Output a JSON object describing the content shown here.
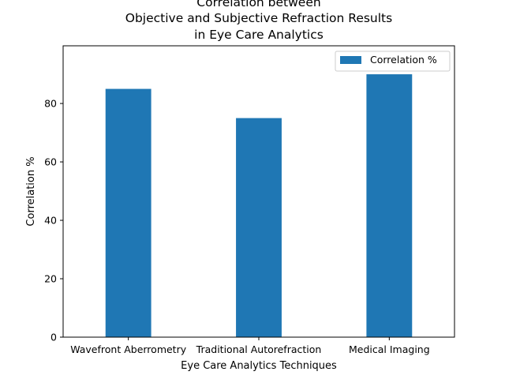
{
  "chart_data": {
    "type": "bar",
    "title_lines": [
      "Correlation between",
      "Objective and Subjective Refraction Results",
      "in Eye Care Analytics"
    ],
    "xlabel": "Eye Care Analytics Techniques",
    "ylabel": "Correlation %",
    "categories": [
      "Wavefront Aberrometry",
      "Traditional Autorefraction",
      "Medical Imaging"
    ],
    "series": [
      {
        "name": "Correlation %",
        "values": [
          85,
          75,
          90
        ],
        "color": "#1f77b4"
      }
    ],
    "ylim": [
      0,
      99.75
    ],
    "yticks": [
      0,
      20,
      40,
      60,
      80
    ],
    "grid": false,
    "legend_position": "top-right"
  }
}
